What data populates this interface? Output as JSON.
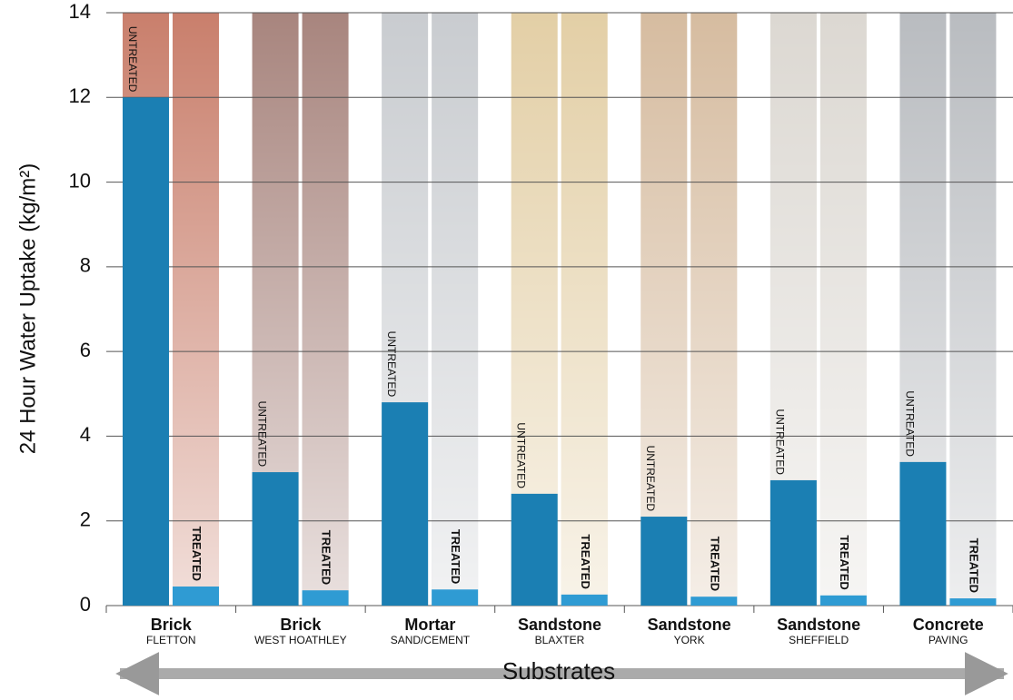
{
  "chart_data": {
    "type": "bar",
    "y_label": "24 Hour Water Uptake (kg/m²)",
    "x_label": "Substrates",
    "categories": [
      "Brick",
      "Brick",
      "Mortar",
      "Sandstone",
      "Sandstone",
      "Sandstone",
      "Concrete"
    ],
    "subcategories": [
      "FLETTON",
      "WEST HOATHLEY",
      "SAND/CEMENT",
      "BLAXTER",
      "YORK",
      "SHEFFIELD",
      "PAVING"
    ],
    "swatch_colors": [
      "#c97f6c",
      "#a8857e",
      "#c9ccd0",
      "#e3cfa6",
      "#d6bca0",
      "#dcd8d2",
      "#b9bcc0"
    ],
    "series": [
      {
        "name": "UNTREATED",
        "color": "#1b7fb3",
        "values": [
          12.0,
          3.15,
          4.8,
          2.64,
          2.1,
          2.96,
          3.39
        ]
      },
      {
        "name": "TREATED",
        "color": "#2f9bd3",
        "values": [
          0.45,
          0.36,
          0.38,
          0.26,
          0.21,
          0.24,
          0.17
        ]
      }
    ],
    "ylim": [
      0,
      14
    ],
    "yticks": [
      0,
      2,
      4,
      6,
      8,
      10,
      12,
      14
    ],
    "grid": true
  }
}
